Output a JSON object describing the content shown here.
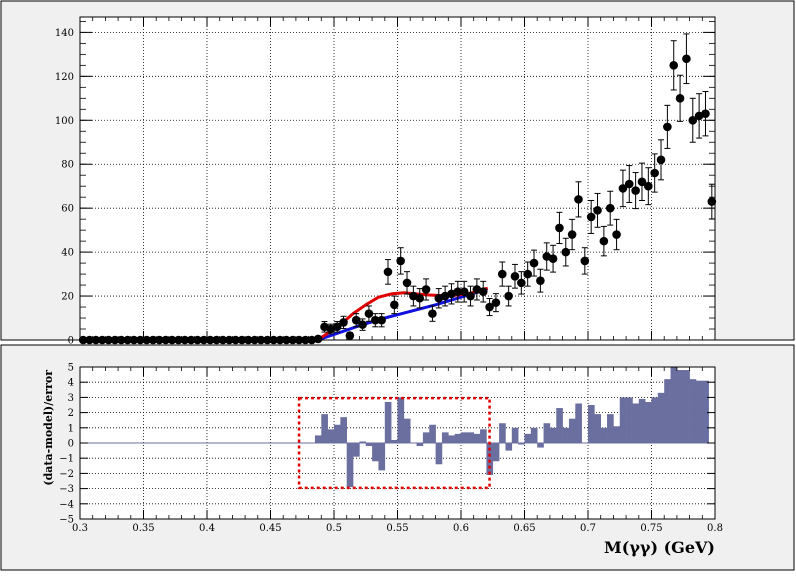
{
  "colors": {
    "pad_bg": "#f0f0f0",
    "frame": "#000000",
    "grid": "#000000",
    "fit_total": "#e00000",
    "fit_background": "#1010e0",
    "residual_fill": "#6b6fa0",
    "residual_line": "#6b6fa0",
    "highlight_box": "#e00000",
    "markers": "#000000"
  },
  "chart_data": [
    {
      "type": "scatter",
      "panel": "top",
      "title": "",
      "xlabel": "",
      "ylabel": "",
      "xlim": [
        0.3,
        0.8
      ],
      "ylim": [
        0,
        147
      ],
      "yticks": [
        0,
        20,
        40,
        60,
        80,
        100,
        120,
        140
      ],
      "grid": true,
      "series": [
        {
          "kind": "data",
          "points": [
            [
              0.3025,
              0,
              0
            ],
            [
              0.3075,
              0,
              0
            ],
            [
              0.3125,
              0,
              0
            ],
            [
              0.3175,
              0,
              0
            ],
            [
              0.3225,
              0,
              0
            ],
            [
              0.3275,
              0,
              0
            ],
            [
              0.3325,
              0,
              0
            ],
            [
              0.3375,
              0,
              0
            ],
            [
              0.3425,
              0,
              0
            ],
            [
              0.3475,
              0,
              0
            ],
            [
              0.3525,
              0,
              0
            ],
            [
              0.3575,
              0,
              0
            ],
            [
              0.3625,
              0,
              0
            ],
            [
              0.3675,
              0,
              0
            ],
            [
              0.3725,
              0,
              0
            ],
            [
              0.3775,
              0,
              0
            ],
            [
              0.3825,
              0,
              0
            ],
            [
              0.3875,
              0,
              0
            ],
            [
              0.3925,
              0,
              0
            ],
            [
              0.3975,
              0,
              0
            ],
            [
              0.4025,
              0,
              0
            ],
            [
              0.4075,
              0,
              0
            ],
            [
              0.4125,
              0,
              0
            ],
            [
              0.4175,
              0,
              0
            ],
            [
              0.4225,
              0,
              0
            ],
            [
              0.4275,
              0,
              0
            ],
            [
              0.4325,
              0,
              0
            ],
            [
              0.4375,
              0,
              0
            ],
            [
              0.4425,
              0,
              0
            ],
            [
              0.4475,
              0,
              0
            ],
            [
              0.4525,
              0,
              0
            ],
            [
              0.4575,
              0,
              0
            ],
            [
              0.4625,
              0,
              0
            ],
            [
              0.4675,
              0,
              0
            ],
            [
              0.4725,
              0,
              0
            ],
            [
              0.4775,
              0,
              0
            ],
            [
              0.4825,
              0,
              0
            ],
            [
              0.4875,
              0.5,
              0.8
            ],
            [
              0.4925,
              6,
              2.4
            ],
            [
              0.4975,
              5,
              2.2
            ],
            [
              0.5025,
              6,
              2.4
            ],
            [
              0.5075,
              8,
              2.8
            ],
            [
              0.5125,
              2,
              1.4
            ],
            [
              0.5175,
              9,
              3
            ],
            [
              0.5225,
              7,
              2.6
            ],
            [
              0.5275,
              12,
              3.5
            ],
            [
              0.5325,
              9,
              3
            ],
            [
              0.5375,
              9,
              3
            ],
            [
              0.5425,
              31,
              5.6
            ],
            [
              0.5475,
              16,
              4
            ],
            [
              0.5525,
              36,
              6
            ],
            [
              0.5575,
              26,
              5.1
            ],
            [
              0.5625,
              20,
              4.5
            ],
            [
              0.5675,
              19,
              4.4
            ],
            [
              0.5725,
              23,
              4.8
            ],
            [
              0.5775,
              12,
              3.5
            ],
            [
              0.5825,
              19,
              4.4
            ],
            [
              0.5875,
              20,
              4.5
            ],
            [
              0.5925,
              21,
              4.6
            ],
            [
              0.5975,
              22,
              4.7
            ],
            [
              0.6025,
              22,
              4.7
            ],
            [
              0.6075,
              20,
              4.5
            ],
            [
              0.6125,
              23,
              4.8
            ],
            [
              0.6175,
              22,
              4.7
            ],
            [
              0.6225,
              15,
              3.9
            ],
            [
              0.6275,
              17,
              4.1
            ],
            [
              0.6325,
              30,
              5.5
            ],
            [
              0.6375,
              20,
              4.5
            ],
            [
              0.6425,
              29,
              5.4
            ],
            [
              0.6475,
              26,
              5.1
            ],
            [
              0.6525,
              30,
              5.5
            ],
            [
              0.6575,
              35,
              5.9
            ],
            [
              0.6625,
              27,
              5.2
            ],
            [
              0.6675,
              38,
              6.2
            ],
            [
              0.6725,
              37,
              6.1
            ],
            [
              0.6775,
              51,
              7.1
            ],
            [
              0.6825,
              40,
              6.3
            ],
            [
              0.6875,
              48,
              6.9
            ],
            [
              0.6925,
              64,
              8
            ],
            [
              0.6975,
              36,
              6
            ],
            [
              0.7025,
              56,
              7.5
            ],
            [
              0.7075,
              59,
              7.7
            ],
            [
              0.7125,
              45,
              6.7
            ],
            [
              0.7175,
              60,
              7.7
            ],
            [
              0.7225,
              48,
              6.9
            ],
            [
              0.7275,
              69,
              8.3
            ],
            [
              0.7325,
              71,
              8.4
            ],
            [
              0.7375,
              68,
              8.2
            ],
            [
              0.7425,
              72,
              8.5
            ],
            [
              0.7475,
              70,
              8.4
            ],
            [
              0.7525,
              76,
              8.7
            ],
            [
              0.7575,
              82,
              9.1
            ],
            [
              0.7625,
              97,
              9.8
            ],
            [
              0.7675,
              125,
              11.2
            ],
            [
              0.7725,
              110,
              10.5
            ],
            [
              0.7775,
              128,
              11.3
            ],
            [
              0.7825,
              100,
              10
            ],
            [
              0.7875,
              102,
              10.1
            ],
            [
              0.7925,
              103,
              10.1
            ],
            [
              0.7975,
              63,
              7.9
            ]
          ]
        },
        {
          "kind": "fit-total",
          "x": [
            0.487,
            0.495,
            0.505,
            0.515,
            0.525,
            0.535,
            0.545,
            0.555,
            0.565,
            0.575,
            0.585,
            0.595,
            0.605,
            0.615,
            0.62
          ],
          "y": [
            0,
            3,
            7,
            12,
            16,
            19.5,
            21,
            21.5,
            21,
            20.5,
            20.2,
            20.4,
            21,
            22.5,
            23.5
          ]
        },
        {
          "kind": "fit-background",
          "x": [
            0.487,
            0.5,
            0.52,
            0.54,
            0.56,
            0.58,
            0.6,
            0.62
          ],
          "y": [
            0,
            2.5,
            6.5,
            10,
            13,
            16,
            19.5,
            23
          ]
        }
      ]
    },
    {
      "type": "bar",
      "panel": "bottom",
      "title": "",
      "xlabel": "M(γγ) (GeV)",
      "ylabel": "(data-model)/error",
      "xlim": [
        0.3,
        0.8
      ],
      "ylim": [
        -5,
        5
      ],
      "xticks": [
        0.3,
        0.35,
        0.4,
        0.45,
        0.5,
        0.55,
        0.6,
        0.65,
        0.7,
        0.75,
        0.8
      ],
      "xtick_labels": [
        "0.3",
        "0.35",
        "0.4",
        "0.45",
        "0.5",
        "0.55",
        "0.6",
        "0.65",
        "0.7",
        "0.75",
        "0.8"
      ],
      "yticks": [
        -5,
        -4,
        -3,
        -2,
        -1,
        0,
        1,
        2,
        3,
        4,
        5
      ],
      "ytick_labels": [
        "−5",
        "−4",
        "−3",
        "−2",
        "−1",
        "0",
        "1",
        "2",
        "3",
        "4",
        "5"
      ],
      "grid": true,
      "bin_width": 0.005,
      "bins": [
        [
          0.4875,
          0.5
        ],
        [
          0.4925,
          1.9
        ],
        [
          0.4975,
          0.9
        ],
        [
          0.5025,
          1.2
        ],
        [
          0.5075,
          1.7
        ],
        [
          0.5125,
          -2.9
        ],
        [
          0.5175,
          -0.9
        ],
        [
          0.5225,
          0.1
        ],
        [
          0.5275,
          -0.2
        ],
        [
          0.5325,
          -1.2
        ],
        [
          0.5375,
          -1.8
        ],
        [
          0.5425,
          2.7
        ],
        [
          0.5475,
          0.2
        ],
        [
          0.5525,
          3
        ],
        [
          0.5575,
          1.6
        ],
        [
          0.5625,
          0
        ],
        [
          0.5675,
          -0.2
        ],
        [
          0.5725,
          0.7
        ],
        [
          0.5775,
          1.2
        ],
        [
          0.5825,
          -1.4
        ],
        [
          0.5875,
          0.7
        ],
        [
          0.5925,
          0.5
        ],
        [
          0.5975,
          0.6
        ],
        [
          0.6025,
          0.7
        ],
        [
          0.6075,
          0.7
        ],
        [
          0.6125,
          0.6
        ],
        [
          0.6175,
          0.9
        ],
        [
          0.6225,
          -2.1
        ],
        [
          0.6275,
          -1.2
        ],
        [
          0.6325,
          1.3
        ],
        [
          0.6375,
          -0.5
        ],
        [
          0.6425,
          1
        ],
        [
          0.6475,
          -0.1
        ],
        [
          0.6525,
          0.6
        ],
        [
          0.6575,
          1
        ],
        [
          0.6625,
          -0.3
        ],
        [
          0.6675,
          1.3
        ],
        [
          0.6725,
          1
        ],
        [
          0.6775,
          2.3
        ],
        [
          0.6825,
          1
        ],
        [
          0.6875,
          1.6
        ],
        [
          0.6925,
          2.6
        ],
        [
          0.6975,
          0
        ],
        [
          0.7025,
          2.5
        ],
        [
          0.7075,
          1.9
        ],
        [
          0.7125,
          1
        ],
        [
          0.7175,
          1.9
        ],
        [
          0.7225,
          1.1
        ],
        [
          0.7275,
          3
        ],
        [
          0.7325,
          3
        ],
        [
          0.7375,
          2.6
        ],
        [
          0.7425,
          2.9
        ],
        [
          0.7475,
          2.7
        ],
        [
          0.7525,
          3
        ],
        [
          0.7575,
          3.3
        ],
        [
          0.7625,
          4.2
        ],
        [
          0.7675,
          5
        ],
        [
          0.7725,
          4.8
        ],
        [
          0.7775,
          4.8
        ],
        [
          0.7825,
          4.2
        ],
        [
          0.7875,
          4.1
        ],
        [
          0.7925,
          4.1
        ]
      ],
      "highlight_range": {
        "x": [
          0.4725,
          0.6225
        ],
        "y": [
          -2.95,
          2.95
        ]
      }
    }
  ]
}
